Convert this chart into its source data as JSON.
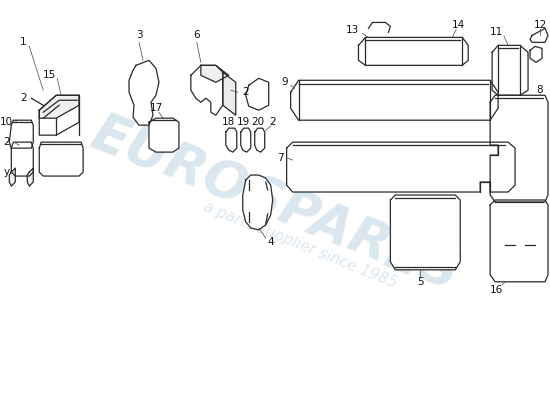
{
  "bg_color": "#ffffff",
  "line_color": "#2a2a2a",
  "lw": 0.9,
  "watermark_color": "#b8cfe0",
  "watermark_text1": "EUROSPARES",
  "watermark_text2": "a parts supplier since 1985",
  "label_fontsize": 7.5
}
